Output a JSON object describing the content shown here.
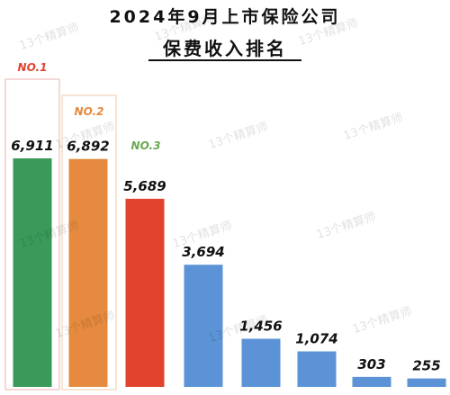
{
  "title": {
    "line1": "2024年9月上市保险公司",
    "line2": "保费收入排名"
  },
  "watermark": "13个精算师",
  "chart_data": {
    "type": "bar",
    "title": "2024年9月上市保险公司 保费收入排名",
    "categories": [
      "",
      "",
      "",
      "",
      "",
      "",
      "",
      ""
    ],
    "values": [
      6911,
      6892,
      5689,
      3694,
      1456,
      1074,
      303,
      255
    ],
    "value_labels": [
      "6,911",
      "6,892",
      "5,689",
      "3,694",
      "1,456",
      "1,074",
      "303",
      "255"
    ],
    "rank_labels": [
      "NO.1",
      "NO.2",
      "NO.3"
    ],
    "colors": [
      "#3a9a5a",
      "#e58a3e",
      "#e2432e",
      "#5b93d6",
      "#5b93d6",
      "#5b93d6",
      "#5b93d6",
      "#5b93d6"
    ],
    "rank_colors": [
      "#e2432e",
      "#e58a3e",
      "#6aa84f"
    ],
    "rank_box_colors": [
      "#d9534f",
      "#e58a3e",
      ""
    ],
    "ylim": [
      0,
      7200
    ],
    "grid": false,
    "legend": "none"
  }
}
